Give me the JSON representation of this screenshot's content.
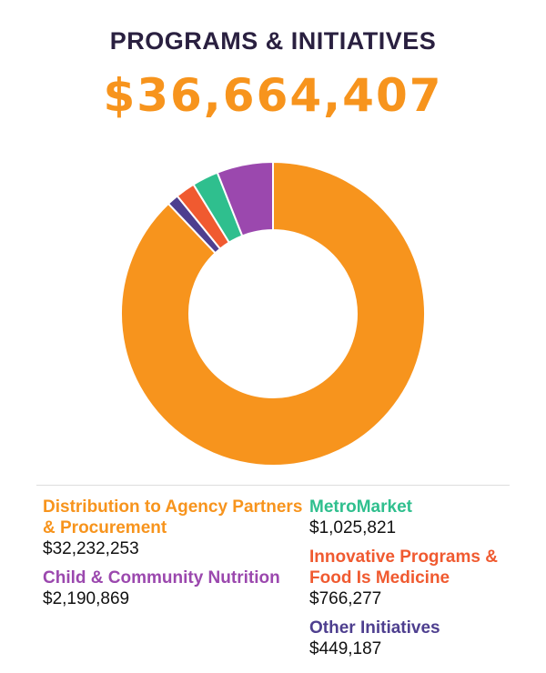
{
  "header": {
    "title": "PROGRAMS & INITIATIVES",
    "total": "$36,664,407"
  },
  "colors": {
    "title": "#2a2040",
    "total": "#f7941d"
  },
  "legend": {
    "left": [
      {
        "label": "Distribution to Agency Partners & Procurement",
        "value": "$32,232,253",
        "color": "#f7941d"
      },
      {
        "label": "Child & Community Nutrition",
        "value": "$2,190,869",
        "color": "#9b48ae"
      }
    ],
    "right": [
      {
        "label": "MetroMarket",
        "value": "$1,025,821",
        "color": "#2fbf8e"
      },
      {
        "label": "Innovative Programs & Food Is Medicine",
        "value": "$766,277",
        "color": "#f05a30"
      },
      {
        "label": "Other Initiatives",
        "value": "$449,187",
        "color": "#4e3f8f"
      }
    ]
  },
  "chart_data": {
    "type": "pie",
    "title": "PROGRAMS & INITIATIVES",
    "total": 36664407,
    "donut": true,
    "slices": [
      {
        "label": "Distribution to Agency Partners & Procurement",
        "value": 32232253,
        "color": "#f7941d"
      },
      {
        "label": "Other Initiatives",
        "value": 449187,
        "color": "#4e3f8f"
      },
      {
        "label": "Innovative Programs & Food Is Medicine",
        "value": 766277,
        "color": "#f05a30"
      },
      {
        "label": "MetroMarket",
        "value": 1025821,
        "color": "#2fbf8e"
      },
      {
        "label": "Child & Community Nutrition",
        "value": 2190869,
        "color": "#9b48ae"
      }
    ]
  }
}
